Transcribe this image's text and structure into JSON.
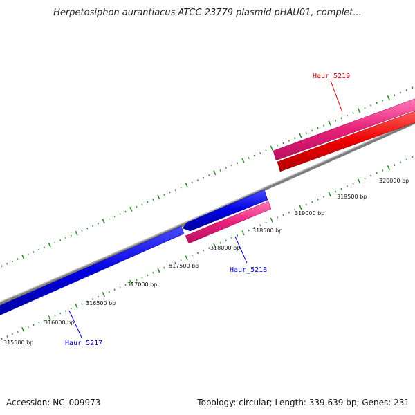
{
  "title": "Herpetosiphon aurantiacus ATCC 23779 plasmid pHAU01, complet...",
  "footer": {
    "accession": "Accession: NC_009973",
    "summary": "Topology: circular; Length: 339,639 bp; Genes: 231"
  },
  "colors": {
    "backbone": "#808080",
    "tick": "#2e8b2e",
    "gene_blue": "#0000e0",
    "gene_pink": "#e8207a",
    "gene_red": "#ee0000",
    "label_blue": "#0000cc",
    "label_red": "#cc0000"
  },
  "scale": {
    "tick_labels": [
      "315500 bp",
      "316000 bp",
      "316500 bp",
      "317000 bp",
      "317500 bp",
      "318000 bp",
      "318500 bp",
      "319000 bp",
      "319500 bp",
      "320000 bp"
    ]
  },
  "genes": [
    {
      "name": "Haur_5217",
      "color": "gene_blue",
      "label_color": "label_blue"
    },
    {
      "name": "Haur_5218",
      "color": "gene_pink",
      "label_color": "label_blue"
    },
    {
      "name": "Haur_5219",
      "color": "gene_red",
      "label_color": "label_red"
    }
  ]
}
